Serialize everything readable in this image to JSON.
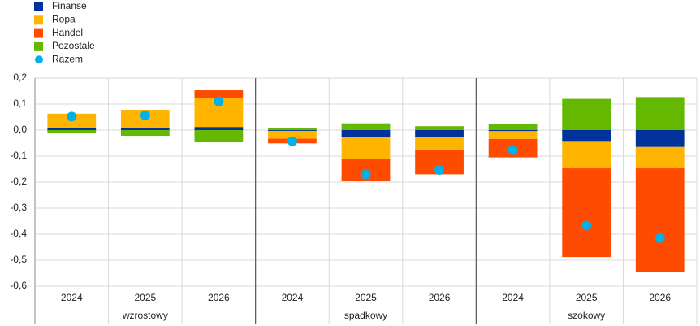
{
  "chart_data": {
    "type": "bar",
    "stacked": true,
    "categories": [
      "2024",
      "2025",
      "2026",
      "2024",
      "2025",
      "2026",
      "2024",
      "2025",
      "2026"
    ],
    "groups": [
      "wzrostowy",
      "spadkowy",
      "szokowy"
    ],
    "series": [
      {
        "name": "Finanse",
        "color": "#003299",
        "values": [
          0.007,
          0.01,
          0.012,
          -0.003,
          -0.028,
          -0.028,
          -0.004,
          -0.045,
          -0.065
        ]
      },
      {
        "name": "Ropa",
        "color": "#ffb400",
        "values": [
          0.056,
          0.068,
          0.11,
          -0.03,
          -0.082,
          -0.05,
          -0.03,
          -0.102,
          -0.082
        ]
      },
      {
        "name": "Handel",
        "color": "#ff4b00",
        "values": [
          0,
          0,
          0.031,
          -0.018,
          -0.087,
          -0.092,
          -0.071,
          -0.341,
          -0.398
        ]
      },
      {
        "name": "Pozostałe",
        "color": "#65b800",
        "values": [
          -0.012,
          -0.022,
          -0.047,
          0.007,
          0.026,
          0.015,
          0.025,
          0.12,
          0.127
        ]
      },
      {
        "name": "Razem",
        "color": "#00b1ea",
        "type": "marker",
        "values": [
          0.052,
          0.057,
          0.11,
          -0.043,
          -0.17,
          -0.153,
          -0.077,
          -0.367,
          -0.415
        ]
      }
    ],
    "ylim": [
      -0.6,
      0.2
    ],
    "yticks": [
      {
        "value": 0.2,
        "label": "0,2"
      },
      {
        "value": 0.1,
        "label": "0,1"
      },
      {
        "value": 0,
        "label": "0,0"
      },
      {
        "value": -0.1,
        "label": "-0,1"
      },
      {
        "value": -0.2,
        "label": "-0,2"
      },
      {
        "value": -0.3,
        "label": "-0,3"
      },
      {
        "value": -0.4,
        "label": "-0,4"
      },
      {
        "value": -0.5,
        "label": "-0,5"
      },
      {
        "value": -0.6,
        "label": "-0,6"
      }
    ],
    "grid": true,
    "legend": "top-left"
  }
}
